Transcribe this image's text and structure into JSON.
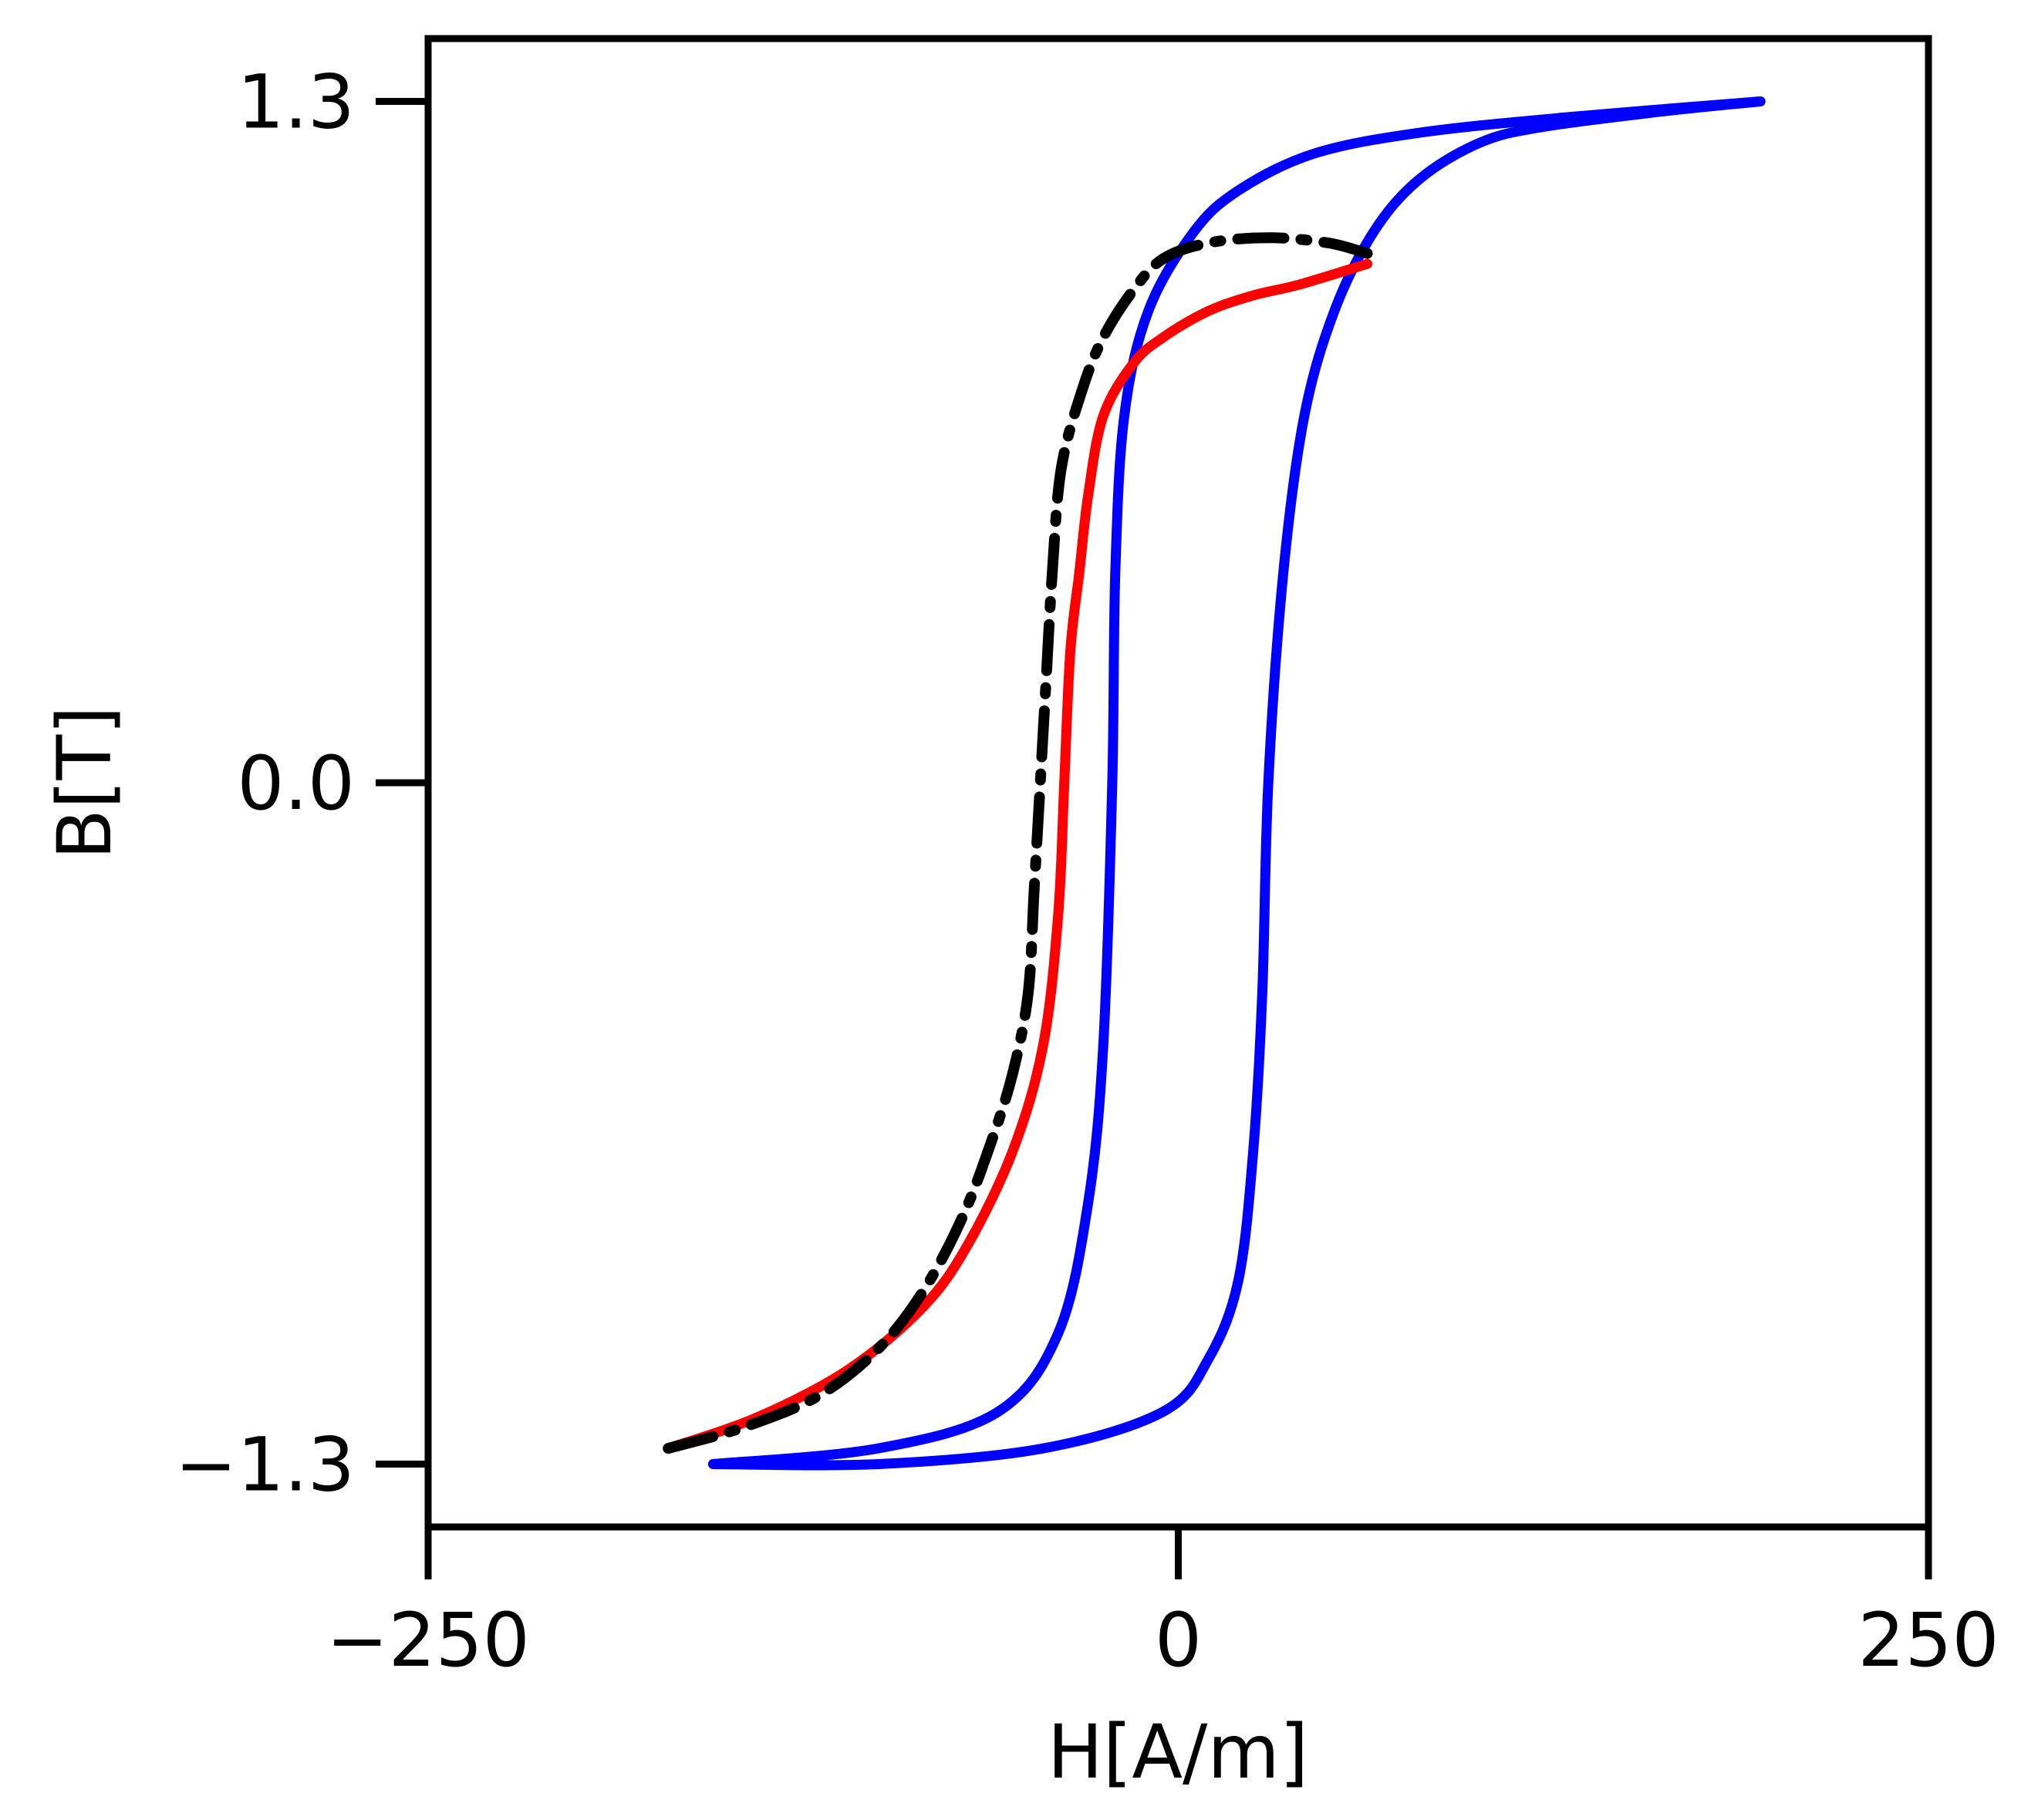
{
  "chart_data": {
    "type": "line",
    "title": "",
    "xlabel": "H[A/m]",
    "ylabel": "B[T]",
    "xlim": [
      -250,
      250
    ],
    "ylim": [
      -1.42,
      1.42
    ],
    "x_ticks": [
      -250,
      0,
      250
    ],
    "x_tick_labels": [
      "−250",
      "0",
      "250"
    ],
    "y_ticks": [
      -1.3,
      0.0,
      1.3
    ],
    "y_tick_labels": [
      "−1.3",
      "0.0",
      "1.3"
    ],
    "grid": false,
    "legend": "none",
    "series": [
      {
        "color": "#0000ff",
        "style": "solid",
        "points": [
          [
            194,
            1.3
          ],
          [
            160,
            1.28
          ],
          [
            120,
            1.25
          ],
          [
            100,
            1.22
          ],
          [
            80,
            1.15
          ],
          [
            65,
            1.05
          ],
          [
            52,
            0.9
          ],
          [
            42,
            0.7
          ],
          [
            35,
            0.4
          ],
          [
            30,
            0.0
          ],
          [
            28,
            -0.4
          ],
          [
            25,
            -0.7
          ],
          [
            20,
            -0.95
          ],
          [
            10,
            -1.1
          ],
          [
            -5,
            -1.2
          ],
          [
            -45,
            -1.27
          ],
          [
            -100,
            -1.3
          ],
          [
            -155,
            -1.3
          ]
        ]
      },
      {
        "color": "#0000ff",
        "style": "solid",
        "points": [
          [
            -155,
            -1.3
          ],
          [
            -100,
            -1.27
          ],
          [
            -60,
            -1.2
          ],
          [
            -40,
            -1.05
          ],
          [
            -30,
            -0.8
          ],
          [
            -25,
            -0.5
          ],
          [
            -22,
            0.0
          ],
          [
            -21,
            0.4
          ],
          [
            -18,
            0.7
          ],
          [
            -10,
            0.9
          ],
          [
            5,
            1.05
          ],
          [
            20,
            1.13
          ],
          [
            45,
            1.2
          ],
          [
            80,
            1.24
          ],
          [
            130,
            1.27
          ],
          [
            194,
            1.3
          ]
        ]
      },
      {
        "color": "#ff0000",
        "style": "solid",
        "points": [
          [
            -170,
            -1.27
          ],
          [
            -140,
            -1.21
          ],
          [
            -110,
            -1.12
          ],
          [
            -85,
            -1.0
          ],
          [
            -70,
            -0.88
          ],
          [
            -55,
            -0.7
          ],
          [
            -45,
            -0.5
          ],
          [
            -40,
            -0.25
          ],
          [
            -38,
            0.0
          ],
          [
            -36,
            0.25
          ],
          [
            -33,
            0.4
          ],
          [
            -30,
            0.55
          ],
          [
            -25,
            0.7
          ],
          [
            -15,
            0.8
          ],
          [
            -5,
            0.85
          ],
          [
            10,
            0.9
          ],
          [
            25,
            0.93
          ],
          [
            40,
            0.95
          ],
          [
            63,
            0.99
          ]
        ]
      },
      {
        "color": "#000000",
        "style": "dashdot",
        "points": [
          [
            -170,
            -1.27
          ],
          [
            -145,
            -1.23
          ],
          [
            -120,
            -1.17
          ],
          [
            -100,
            -1.08
          ],
          [
            -85,
            -0.97
          ],
          [
            -72,
            -0.83
          ],
          [
            -62,
            -0.68
          ],
          [
            -55,
            -0.55
          ],
          [
            -50,
            -0.4
          ],
          [
            -48,
            -0.2
          ],
          [
            -46,
            0.0
          ],
          [
            -44,
            0.2
          ],
          [
            -42,
            0.4
          ],
          [
            -39,
            0.6
          ],
          [
            -32,
            0.75
          ],
          [
            -25,
            0.85
          ],
          [
            -15,
            0.94
          ],
          [
            -5,
            1.0
          ],
          [
            10,
            1.03
          ],
          [
            30,
            1.04
          ],
          [
            50,
            1.03
          ],
          [
            63,
            1.01
          ]
        ]
      }
    ]
  }
}
